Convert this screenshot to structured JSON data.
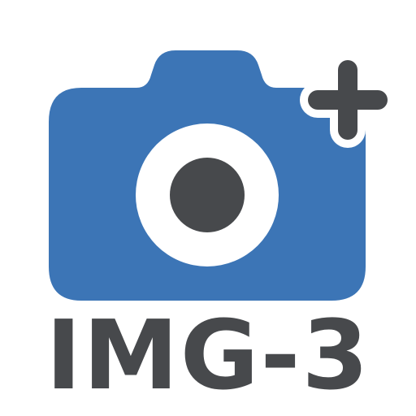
{
  "icon": {
    "name": "camera-add-icon",
    "label": "IMG-3"
  },
  "colors": {
    "camera_body": "#3c75b6",
    "lens_ring": "#ffffff",
    "lens_center": "#47494c",
    "plus": "#47494c",
    "text": "#47494c",
    "background": "#ffffff"
  }
}
